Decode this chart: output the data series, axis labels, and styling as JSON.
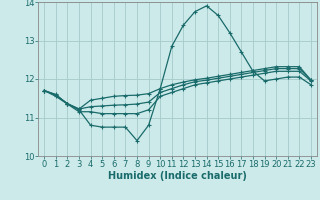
{
  "xlabel": "Humidex (Indice chaleur)",
  "background_color": "#cdeaea",
  "grid_color": "#aacece",
  "line_color": "#1a6b6b",
  "xlim": [
    -0.5,
    23.5
  ],
  "ylim": [
    10,
    14
  ],
  "yticks": [
    10,
    11,
    12,
    13,
    14
  ],
  "xticks": [
    0,
    1,
    2,
    3,
    4,
    5,
    6,
    7,
    8,
    9,
    10,
    11,
    12,
    13,
    14,
    15,
    16,
    17,
    18,
    19,
    20,
    21,
    22,
    23
  ],
  "series": [
    [
      11.7,
      11.6,
      11.35,
      11.2,
      10.8,
      10.75,
      10.75,
      10.75,
      10.4,
      10.8,
      11.75,
      12.85,
      13.4,
      13.75,
      13.9,
      13.65,
      13.2,
      12.7,
      12.2,
      11.95,
      12.0,
      12.05,
      12.05,
      11.85
    ],
    [
      11.7,
      11.55,
      11.35,
      11.15,
      11.15,
      11.1,
      11.1,
      11.1,
      11.1,
      11.2,
      11.55,
      11.65,
      11.75,
      11.85,
      11.9,
      11.95,
      12.0,
      12.05,
      12.1,
      12.15,
      12.2,
      12.2,
      12.2,
      11.95
    ],
    [
      11.7,
      11.58,
      11.36,
      11.22,
      11.28,
      11.3,
      11.32,
      11.33,
      11.35,
      11.4,
      11.65,
      11.75,
      11.85,
      11.93,
      11.97,
      12.02,
      12.07,
      12.12,
      12.17,
      12.22,
      12.27,
      12.27,
      12.27,
      11.97
    ],
    [
      11.7,
      11.58,
      11.36,
      11.22,
      11.45,
      11.5,
      11.55,
      11.57,
      11.58,
      11.62,
      11.75,
      11.85,
      11.92,
      11.98,
      12.02,
      12.07,
      12.12,
      12.17,
      12.22,
      12.27,
      12.32,
      12.32,
      12.32,
      11.97
    ]
  ]
}
